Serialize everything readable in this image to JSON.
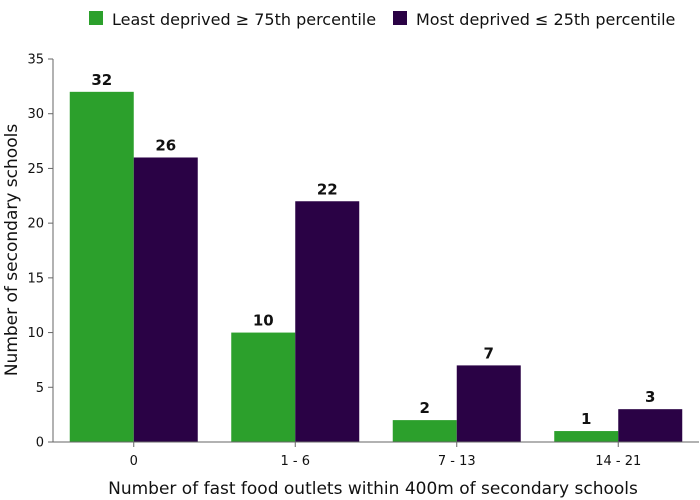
{
  "chart_data": {
    "type": "bar",
    "xlabel": "Number of fast food outlets within 400m of secondary schools",
    "ylabel": "Number of secondary schools",
    "categories": [
      "0",
      "1 - 6",
      "7 - 13",
      "14 - 21"
    ],
    "ylim": [
      0,
      35
    ],
    "yticks": [
      "0",
      "5",
      "10",
      "15",
      "20",
      "25",
      "30",
      "35"
    ],
    "grid": false,
    "legend_position": "top",
    "series": [
      {
        "name": "Least deprived ≥ 75th percentile",
        "color": "#2ca02c",
        "values": [
          32,
          10,
          2,
          1
        ]
      },
      {
        "name": "Most deprived ≤ 25th percentile",
        "color": "#2a0245",
        "values": [
          26,
          22,
          7,
          3
        ]
      }
    ]
  }
}
